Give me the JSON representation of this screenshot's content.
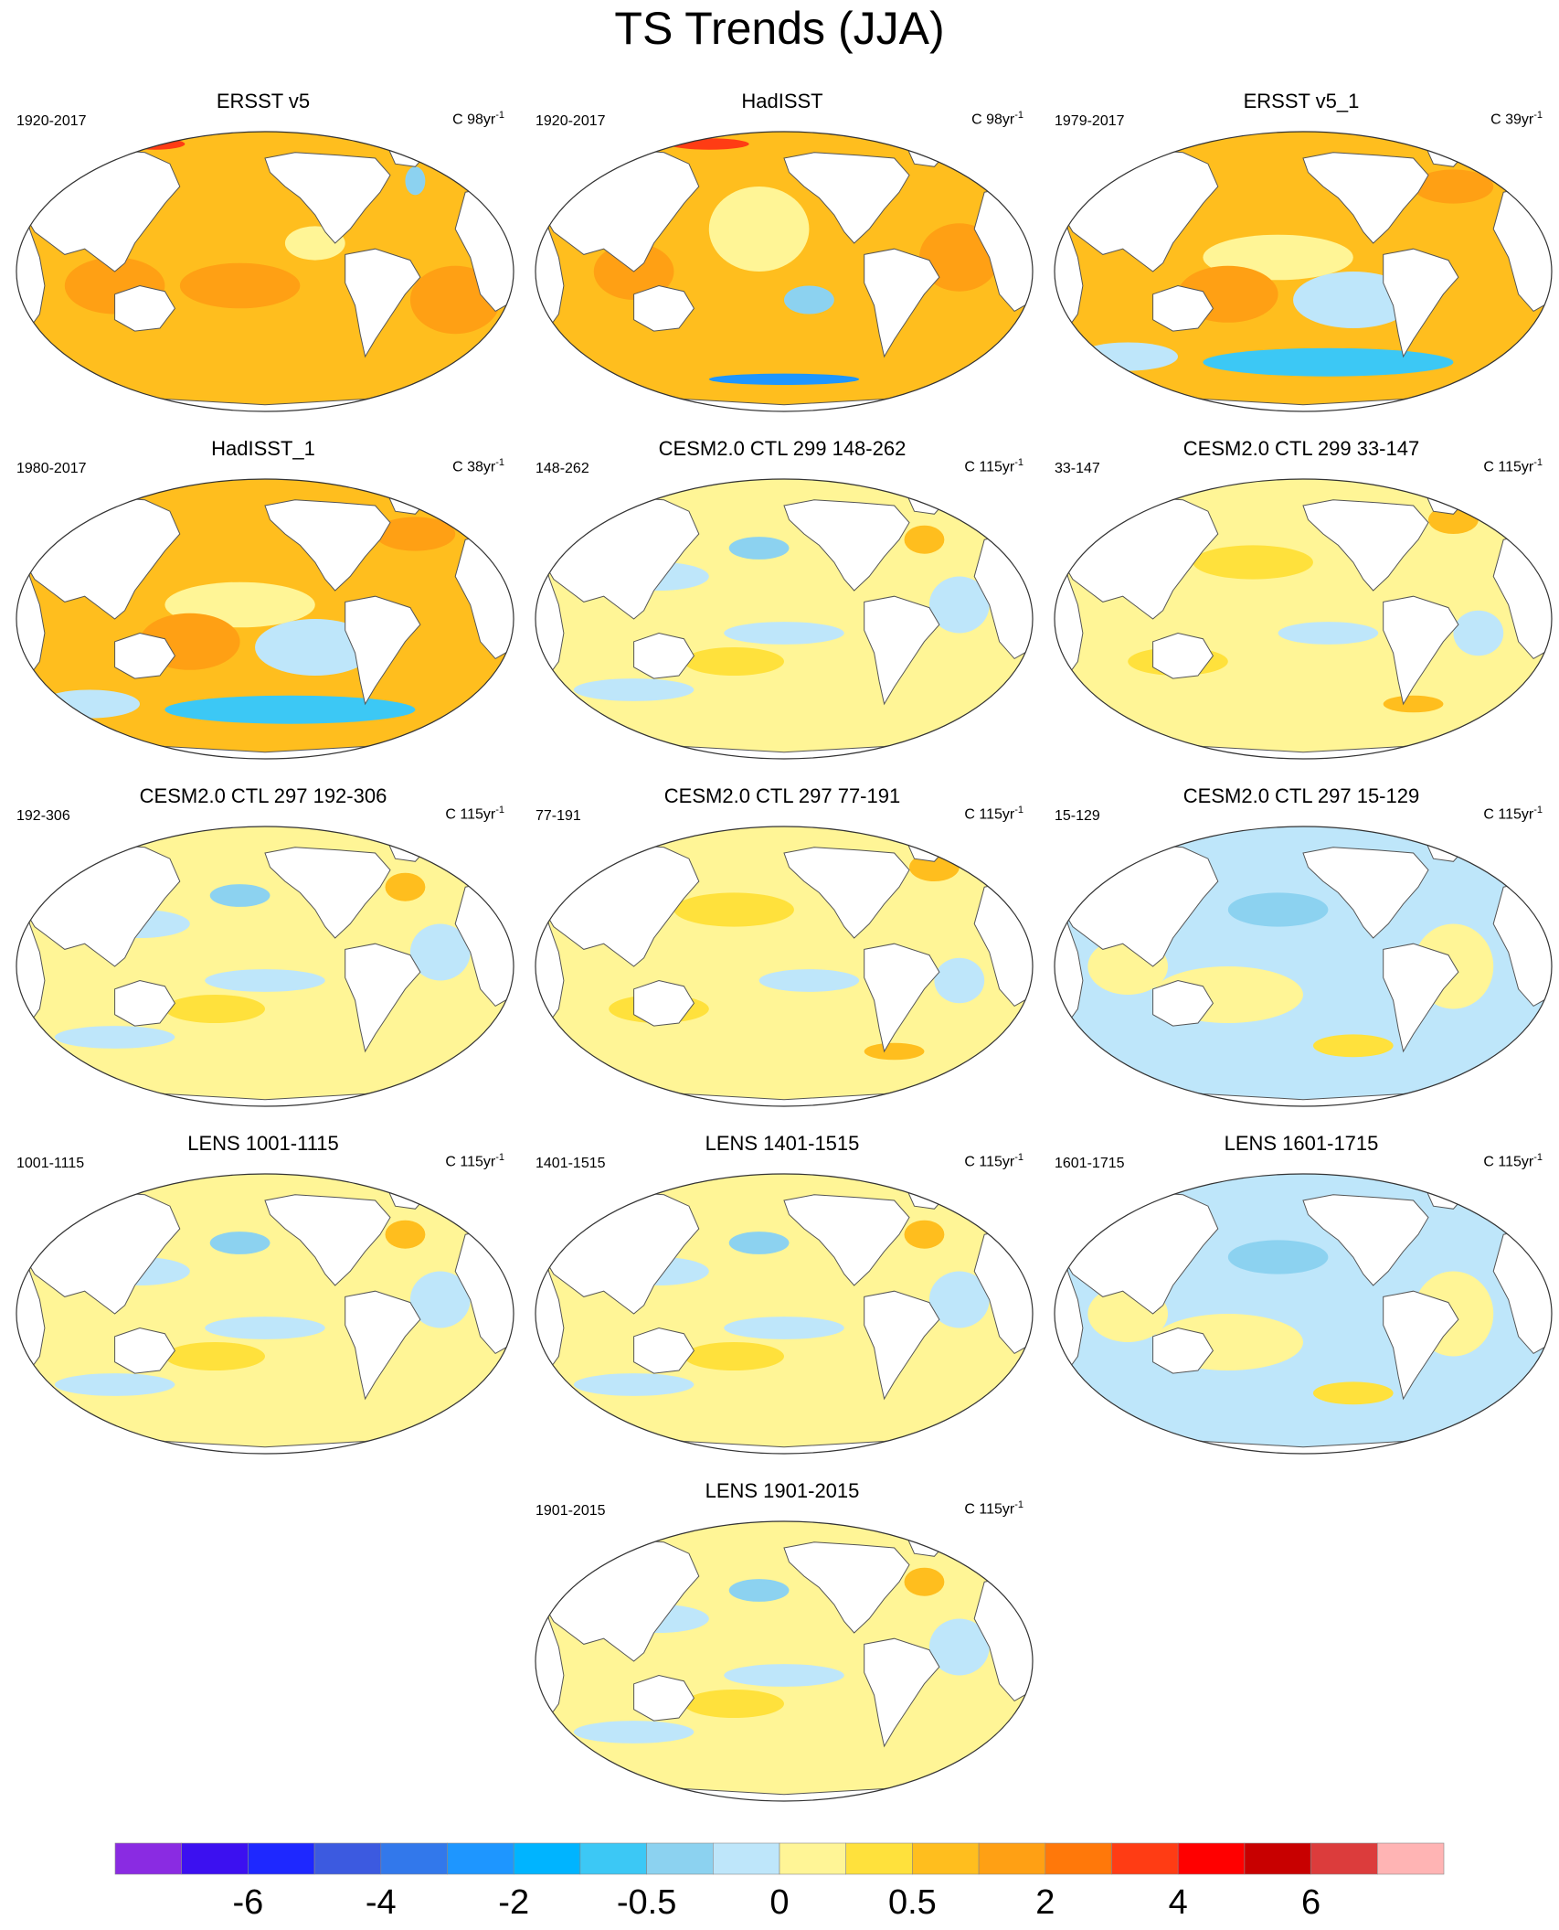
{
  "figure": {
    "title": "TS Trends (JJA)"
  },
  "panels": [
    {
      "title": "ERSST v5",
      "period": "1920-2017",
      "units": "C 98yr",
      "units_exp": "-1",
      "pattern": "strong-warm"
    },
    {
      "title": "HadISST",
      "period": "1920-2017",
      "units": "C 98yr",
      "units_exp": "-1",
      "pattern": "strong-warm-noisy"
    },
    {
      "title": "ERSST v5_1",
      "period": "1979-2017",
      "units": "C 39yr",
      "units_exp": "-1",
      "pattern": "warm-cool-south"
    },
    {
      "title": "HadISST_1",
      "period": "1980-2017",
      "units": "C 38yr",
      "units_exp": "-1",
      "pattern": "warm-cool-south"
    },
    {
      "title": "CESM2.0 CTL 299 148-262",
      "period": "148-262",
      "units": "C 115yr",
      "units_exp": "-1",
      "pattern": "mixed"
    },
    {
      "title": "CESM2.0 CTL 299 33-147",
      "period": "33-147",
      "units": "C 115yr",
      "units_exp": "-1",
      "pattern": "mixed-warm"
    },
    {
      "title": "CESM2.0 CTL 297 192-306",
      "period": "192-306",
      "units": "C 115yr",
      "units_exp": "-1",
      "pattern": "mixed"
    },
    {
      "title": "CESM2.0 CTL 297 77-191",
      "period": "77-191",
      "units": "C 115yr",
      "units_exp": "-1",
      "pattern": "mixed-warm"
    },
    {
      "title": "CESM2.0 CTL 297 15-129",
      "period": "15-129",
      "units": "C 115yr",
      "units_exp": "-1",
      "pattern": "mixed-cool"
    },
    {
      "title": "LENS 1001-1115",
      "period": "1001-1115",
      "units": "C 115yr",
      "units_exp": "-1",
      "pattern": "mixed"
    },
    {
      "title": "LENS 1401-1515",
      "period": "1401-1515",
      "units": "C 115yr",
      "units_exp": "-1",
      "pattern": "mixed"
    },
    {
      "title": "LENS 1601-1715",
      "period": "1601-1715",
      "units": "C 115yr",
      "units_exp": "-1",
      "pattern": "mixed-cool"
    },
    {
      "title": "LENS 1901-2015",
      "period": "1901-2015",
      "units": "C 115yr",
      "units_exp": "-1",
      "pattern": "mixed"
    }
  ],
  "colorbar": {
    "colors": [
      "#8a2be2",
      "#3c10f0",
      "#1e28ff",
      "#3c5ae0",
      "#3278eb",
      "#1e96ff",
      "#00b4ff",
      "#3cc8f5",
      "#8cd2f0",
      "#bee6fa",
      "#fff596",
      "#ffe13c",
      "#ffbe1e",
      "#ffa014",
      "#ff780a",
      "#ff3c14",
      "#ff0000",
      "#c80000",
      "#dc3c3c",
      "#ffb4b4"
    ],
    "tick_labels": [
      "-6",
      "-4",
      "-2",
      "-0.5",
      "0",
      "0.5",
      "2",
      "4",
      "6"
    ],
    "tick_boundaries": [
      2,
      4,
      6,
      8,
      10,
      12,
      14,
      16,
      18
    ]
  },
  "legend_colors": {
    "ocean_cool": "#bee6fa",
    "ocean_neutral": "#fff596",
    "ocean_warm": "#ffbe1e",
    "ocean_hot": "#ffa014",
    "land": "#ffffff"
  }
}
